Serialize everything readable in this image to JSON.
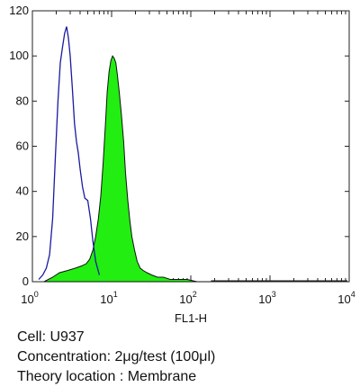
{
  "chart_data": {
    "type": "area",
    "title": "",
    "xlabel": "FL1-H",
    "ylabel": "",
    "x_scale": "log",
    "xlim": [
      1,
      10000
    ],
    "ylim": [
      0,
      120
    ],
    "grid": false,
    "y_ticks": [
      0,
      20,
      40,
      60,
      80,
      100,
      120
    ],
    "x_ticks": [
      {
        "value": 1,
        "base": "10",
        "exp": "0"
      },
      {
        "value": 10,
        "base": "10",
        "exp": "1"
      },
      {
        "value": 100,
        "base": "10",
        "exp": "2"
      },
      {
        "value": 1000,
        "base": "10",
        "exp": "3"
      },
      {
        "value": 10000,
        "base": "10",
        "exp": "4"
      }
    ],
    "series": [
      {
        "style": "outline",
        "color": "#1a1aa0",
        "x": [
          1.2,
          1.35,
          1.5,
          1.65,
          1.8,
          1.95,
          2.1,
          2.25,
          2.4,
          2.55,
          2.7,
          2.85,
          3.0,
          3.2,
          3.4,
          3.6,
          3.8,
          4.0,
          4.3,
          4.6,
          5.0,
          5.4,
          5.8,
          6.3,
          7.0
        ],
        "values": [
          1,
          3,
          6,
          12,
          28,
          55,
          80,
          97,
          104,
          110,
          113,
          108,
          100,
          85,
          70,
          62,
          57,
          50,
          42,
          37,
          36,
          28,
          18,
          9,
          3
        ]
      },
      {
        "style": "filled",
        "color": "#22ee11",
        "x": [
          1.4,
          1.8,
          2.2,
          2.8,
          3.5,
          4.2,
          4.8,
          5.3,
          5.8,
          6.3,
          6.8,
          7.3,
          7.8,
          8.3,
          8.8,
          9.3,
          9.8,
          10.3,
          10.8,
          11.3,
          11.8,
          12.5,
          13.3,
          14.2,
          15.0,
          16.0,
          17.0,
          18.0,
          19.5,
          21.0,
          23.0,
          25.0,
          28.0,
          32.0,
          38.0,
          45.0,
          55.0,
          70.0,
          90.0,
          120.0,
          180.0
        ],
        "values": [
          0,
          2,
          4,
          5,
          6,
          7,
          8,
          10,
          14,
          20,
          28,
          38,
          52,
          68,
          84,
          93,
          98,
          100,
          99,
          97,
          92,
          84,
          74,
          62,
          48,
          36,
          27,
          20,
          14,
          9,
          6,
          5,
          4,
          3,
          2,
          2,
          1,
          1,
          1,
          0,
          0
        ]
      }
    ]
  },
  "caption": {
    "cell": "Cell: U937",
    "concentration": "Concentration: 2μg/test (100μl)",
    "theory_location": "Theory location : Membrane"
  }
}
